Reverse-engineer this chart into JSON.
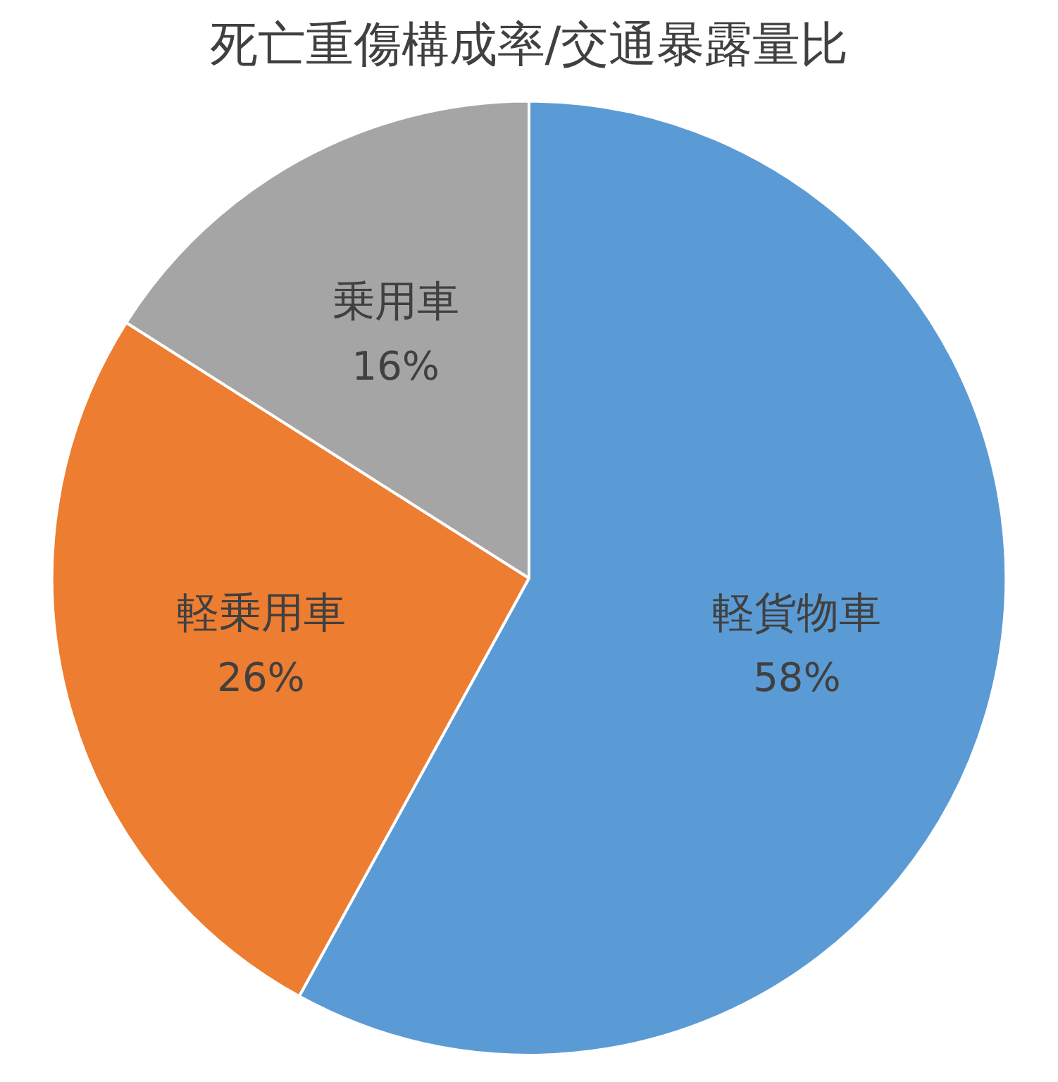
{
  "chart_data": {
    "type": "pie",
    "title": "死亡重傷構成率/交通暴露量比",
    "categories": [
      "軽貨物車",
      "軽乗用車",
      "乗用車"
    ],
    "values": [
      58,
      26,
      16
    ],
    "value_labels": [
      "58%",
      "26%",
      "16%"
    ],
    "colors": [
      "#5b9bd5",
      "#ed7d31",
      "#a5a5a5"
    ],
    "legend": false
  }
}
